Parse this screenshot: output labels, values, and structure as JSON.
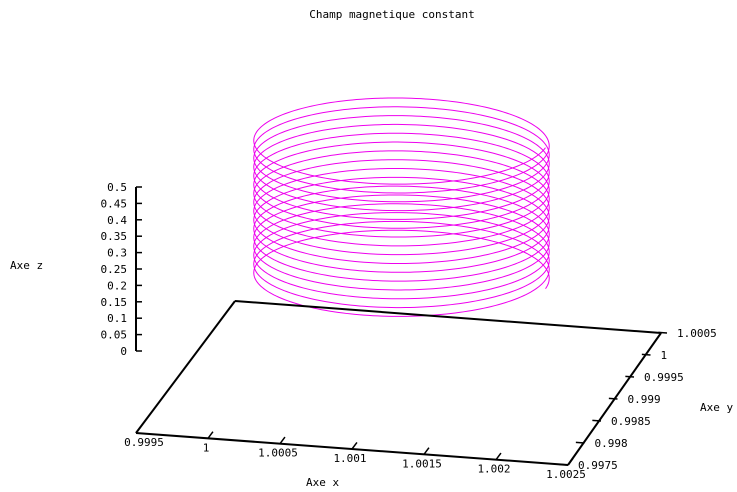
{
  "chart_data": {
    "type": "line3d",
    "title": "Champ magnetique constant",
    "xlabel": "Axe x",
    "ylabel": "Axe y",
    "zlabel": "Axe z",
    "xlim": [
      0.9995,
      1.0025
    ],
    "ylim": [
      0.9975,
      1.0005
    ],
    "zlim": [
      0,
      0.5
    ],
    "x_ticks": [
      "0.9995",
      "1",
      "1.0005",
      "1.001",
      "1.0015",
      "1.002",
      "1.0025"
    ],
    "y_ticks": [
      "0.9975",
      "0.998",
      "0.9985",
      "0.999",
      "0.9995",
      "1",
      "1.0005"
    ],
    "z_ticks": [
      "0",
      "0.05",
      "0.1",
      "0.15",
      "0.2",
      "0.25",
      "0.3",
      "0.35",
      "0.4",
      "0.45",
      "0.5"
    ],
    "grid": false,
    "series": [
      {
        "color": "#ee00ee",
        "shape": "helix",
        "center": [
          1.001,
          0.999
        ],
        "radius": 0.001,
        "turns": 16,
        "z_range": [
          0.07,
          0.5
        ]
      }
    ]
  }
}
